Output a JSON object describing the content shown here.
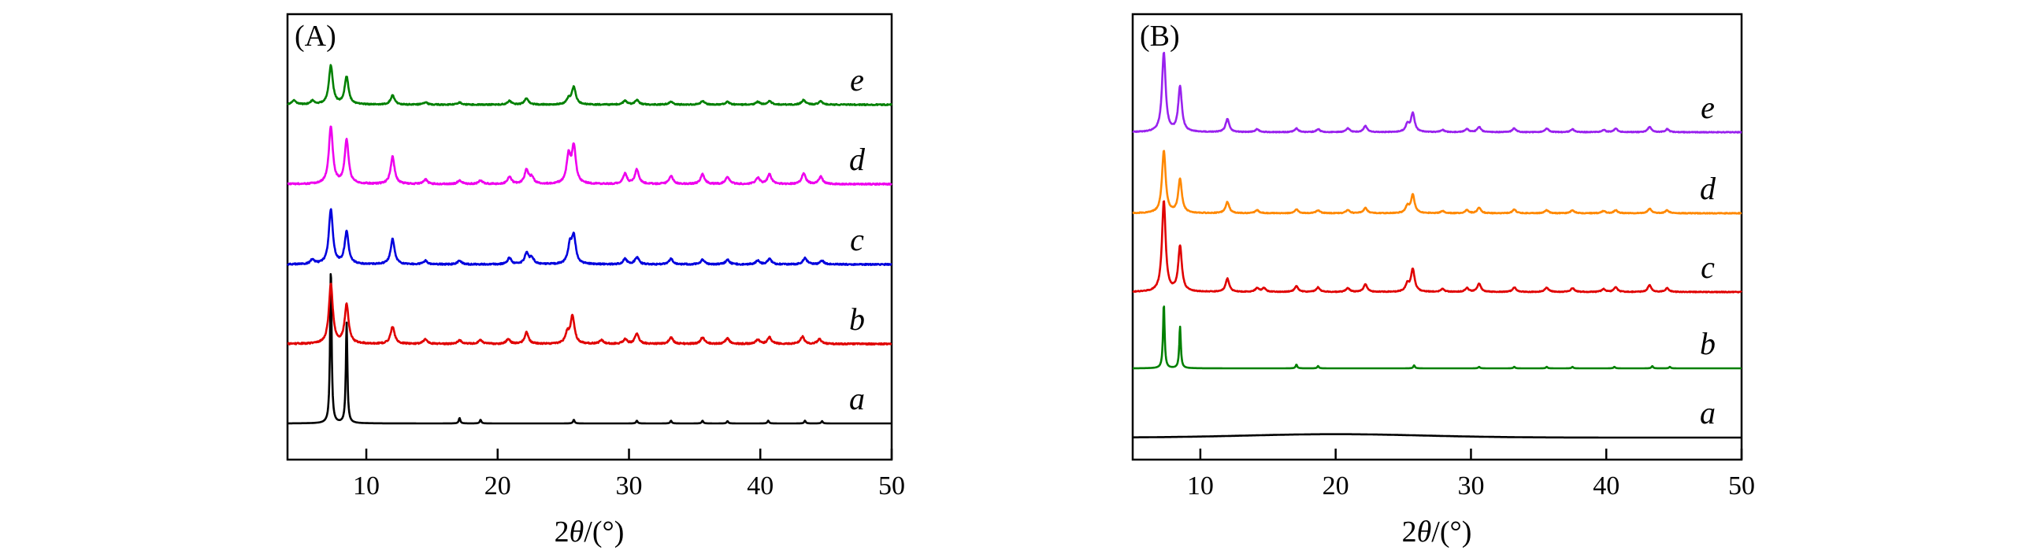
{
  "chart_data": [
    {
      "type": "line",
      "panel_label": "(A)",
      "xlabel_prefix": "2",
      "xlabel_symbol": "θ",
      "xlabel_suffix": "/(°)",
      "ylabel": "",
      "xlim": [
        4,
        50
      ],
      "xticks": [
        10,
        20,
        30,
        40,
        50
      ],
      "yticks_shown": false,
      "legend": "labels at right end of each trace",
      "series": [
        {
          "name": "a",
          "color": "#000000",
          "baseline": 0,
          "noise": 0.0,
          "width": 0.07,
          "peaks": [
            [
              7.3,
              340
            ],
            [
              8.5,
              220
            ],
            [
              17.1,
              12
            ],
            [
              18.7,
              8
            ],
            [
              25.8,
              8
            ],
            [
              30.6,
              6
            ],
            [
              33.2,
              6
            ],
            [
              35.6,
              6
            ],
            [
              37.5,
              5
            ],
            [
              40.6,
              6
            ],
            [
              43.4,
              6
            ],
            [
              44.7,
              5
            ]
          ]
        },
        {
          "name": "b",
          "color": "#e00000",
          "baseline": 0,
          "noise": 1.5,
          "width": 0.18,
          "peaks": [
            [
              7.3,
              130
            ],
            [
              8.5,
              85
            ],
            [
              12.0,
              38
            ],
            [
              14.5,
              10
            ],
            [
              17.1,
              8
            ],
            [
              18.7,
              8
            ],
            [
              20.8,
              10
            ],
            [
              22.2,
              25
            ],
            [
              25.3,
              22
            ],
            [
              25.7,
              60
            ],
            [
              27.9,
              8
            ],
            [
              29.7,
              10
            ],
            [
              30.6,
              22
            ],
            [
              33.2,
              14
            ],
            [
              35.6,
              14
            ],
            [
              37.5,
              12
            ],
            [
              39.8,
              9
            ],
            [
              40.7,
              14
            ],
            [
              43.2,
              16
            ],
            [
              44.5,
              10
            ]
          ]
        },
        {
          "name": "c",
          "color": "#0000dd",
          "baseline": 0,
          "noise": 1.5,
          "width": 0.18,
          "peaks": [
            [
              5.9,
              10
            ],
            [
              7.3,
              120
            ],
            [
              8.5,
              70
            ],
            [
              12.0,
              55
            ],
            [
              14.5,
              8
            ],
            [
              17.1,
              8
            ],
            [
              20.9,
              14
            ],
            [
              22.2,
              24
            ],
            [
              22.6,
              14
            ],
            [
              25.5,
              40
            ],
            [
              25.8,
              58
            ],
            [
              29.7,
              12
            ],
            [
              30.6,
              16
            ],
            [
              33.2,
              12
            ],
            [
              35.6,
              10
            ],
            [
              37.5,
              10
            ],
            [
              39.8,
              8
            ],
            [
              40.7,
              12
            ],
            [
              43.4,
              14
            ],
            [
              44.7,
              8
            ]
          ]
        },
        {
          "name": "d",
          "color": "#ee00ee",
          "baseline": 0,
          "noise": 1.5,
          "width": 0.18,
          "peaks": [
            [
              7.3,
              125
            ],
            [
              8.5,
              95
            ],
            [
              12.0,
              60
            ],
            [
              14.5,
              10
            ],
            [
              17.1,
              8
            ],
            [
              18.7,
              8
            ],
            [
              20.9,
              16
            ],
            [
              22.2,
              30
            ],
            [
              22.6,
              14
            ],
            [
              25.4,
              60
            ],
            [
              25.8,
              80
            ],
            [
              29.7,
              22
            ],
            [
              30.6,
              32
            ],
            [
              33.2,
              18
            ],
            [
              35.6,
              22
            ],
            [
              37.5,
              16
            ],
            [
              39.8,
              14
            ],
            [
              40.7,
              22
            ],
            [
              43.3,
              24
            ],
            [
              44.6,
              16
            ]
          ]
        },
        {
          "name": "e",
          "color": "#008000",
          "baseline": 0,
          "noise": 1.2,
          "width": 0.18,
          "peaks": [
            [
              4.5,
              10
            ],
            [
              5.9,
              8
            ],
            [
              7.3,
              85
            ],
            [
              8.5,
              60
            ],
            [
              12.0,
              20
            ],
            [
              14.5,
              5
            ],
            [
              17.1,
              5
            ],
            [
              20.9,
              8
            ],
            [
              22.2,
              14
            ],
            [
              25.4,
              12
            ],
            [
              25.8,
              38
            ],
            [
              29.7,
              8
            ],
            [
              30.6,
              10
            ],
            [
              33.2,
              7
            ],
            [
              35.6,
              8
            ],
            [
              37.5,
              6
            ],
            [
              39.8,
              6
            ],
            [
              40.7,
              8
            ],
            [
              43.3,
              10
            ],
            [
              44.6,
              7
            ]
          ]
        }
      ]
    },
    {
      "type": "line",
      "panel_label": "(B)",
      "xlabel_prefix": "2",
      "xlabel_symbol": "θ",
      "xlabel_suffix": "/(°)",
      "ylabel": "",
      "xlim": [
        5,
        50
      ],
      "xticks": [
        10,
        20,
        30,
        40,
        50
      ],
      "yticks_shown": false,
      "legend": "labels at right end of each trace",
      "series": [
        {
          "name": "a",
          "color": "#000000",
          "baseline": 0,
          "noise": 0.0,
          "width": 0.2,
          "peaks": [],
          "hump": {
            "center": 20,
            "sigma": 6.5,
            "height": 9
          }
        },
        {
          "name": "b",
          "color": "#008000",
          "baseline": 0,
          "noise": 0.0,
          "width": 0.07,
          "peaks": [
            [
              7.3,
              170
            ],
            [
              8.5,
              110
            ],
            [
              17.1,
              10
            ],
            [
              18.7,
              6
            ],
            [
              25.8,
              8
            ],
            [
              30.6,
              4
            ],
            [
              33.2,
              4
            ],
            [
              35.6,
              4
            ],
            [
              37.5,
              4
            ],
            [
              40.6,
              4
            ],
            [
              43.4,
              6
            ],
            [
              44.7,
              4
            ]
          ]
        },
        {
          "name": "c",
          "color": "#e00000",
          "baseline": 0,
          "noise": 1.0,
          "width": 0.16,
          "peaks": [
            [
              7.3,
              240
            ],
            [
              8.5,
              120
            ],
            [
              12.0,
              35
            ],
            [
              14.2,
              10
            ],
            [
              14.7,
              10
            ],
            [
              17.1,
              15
            ],
            [
              18.7,
              12
            ],
            [
              20.9,
              10
            ],
            [
              22.2,
              20
            ],
            [
              25.3,
              20
            ],
            [
              25.7,
              60
            ],
            [
              27.9,
              8
            ],
            [
              29.7,
              10
            ],
            [
              30.6,
              22
            ],
            [
              33.2,
              12
            ],
            [
              35.6,
              12
            ],
            [
              37.5,
              10
            ],
            [
              39.8,
              8
            ],
            [
              40.7,
              12
            ],
            [
              43.2,
              18
            ],
            [
              44.5,
              10
            ]
          ]
        },
        {
          "name": "d",
          "color": "#ff8800",
          "baseline": 0,
          "noise": 1.0,
          "width": 0.16,
          "peaks": [
            [
              7.3,
              165
            ],
            [
              8.5,
              90
            ],
            [
              12.0,
              30
            ],
            [
              14.2,
              8
            ],
            [
              17.1,
              10
            ],
            [
              18.7,
              8
            ],
            [
              20.9,
              8
            ],
            [
              22.2,
              14
            ],
            [
              25.3,
              18
            ],
            [
              25.7,
              48
            ],
            [
              27.9,
              6
            ],
            [
              29.7,
              8
            ],
            [
              30.6,
              14
            ],
            [
              33.2,
              10
            ],
            [
              35.6,
              8
            ],
            [
              37.5,
              8
            ],
            [
              39.8,
              6
            ],
            [
              40.7,
              8
            ],
            [
              43.2,
              12
            ],
            [
              44.5,
              8
            ]
          ]
        },
        {
          "name": "e",
          "color": "#9922ee",
          "baseline": 0,
          "noise": 1.0,
          "width": 0.16,
          "peaks": [
            [
              7.3,
              210
            ],
            [
              8.5,
              120
            ],
            [
              12.0,
              35
            ],
            [
              14.2,
              8
            ],
            [
              17.1,
              10
            ],
            [
              18.7,
              8
            ],
            [
              20.9,
              10
            ],
            [
              22.2,
              16
            ],
            [
              25.3,
              20
            ],
            [
              25.7,
              50
            ],
            [
              27.9,
              6
            ],
            [
              29.7,
              8
            ],
            [
              30.6,
              14
            ],
            [
              33.2,
              10
            ],
            [
              35.6,
              10
            ],
            [
              37.5,
              8
            ],
            [
              39.8,
              6
            ],
            [
              40.7,
              10
            ],
            [
              43.2,
              14
            ],
            [
              44.5,
              8
            ]
          ]
        }
      ]
    }
  ]
}
